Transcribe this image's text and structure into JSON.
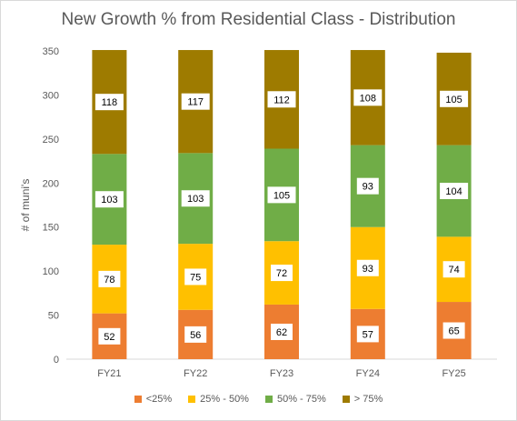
{
  "chart_data": {
    "type": "bar",
    "stacked": true,
    "title": "New Growth % from Residential Class - Distribution",
    "xlabel": "",
    "ylabel": "# of muni's",
    "ylim": [
      0,
      350
    ],
    "yticks": [
      0,
      50,
      100,
      150,
      200,
      250,
      300,
      350
    ],
    "grid": false,
    "legend_position": "bottom",
    "categories": [
      "FY21",
      "FY22",
      "FY23",
      "FY24",
      "FY25"
    ],
    "series": [
      {
        "name": "<25%",
        "color": "#ED7D31",
        "values": [
          52,
          56,
          62,
          57,
          65
        ]
      },
      {
        "name": "25% - 50%",
        "color": "#FFC000",
        "values": [
          78,
          75,
          72,
          93,
          74
        ]
      },
      {
        "name": "50% - 75%",
        "color": "#70AD47",
        "values": [
          103,
          103,
          105,
          93,
          104
        ]
      },
      {
        "name": "> 75%",
        "color": "#9E7B00",
        "values": [
          118,
          117,
          112,
          108,
          105
        ]
      }
    ]
  }
}
